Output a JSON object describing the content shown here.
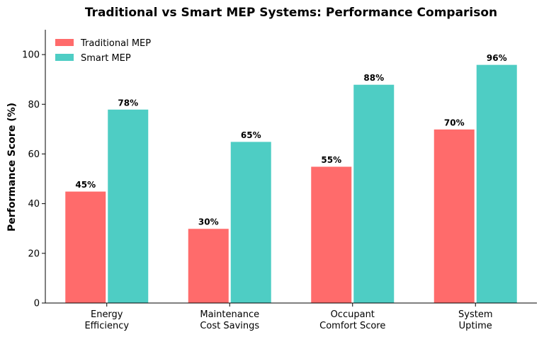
{
  "chart_data": {
    "type": "bar",
    "title": "Traditional vs Smart MEP Systems: Performance Comparison",
    "xlabel": "",
    "ylabel": "Performance Score (%)",
    "ylim": [
      0,
      110
    ],
    "yticks": [
      0,
      20,
      40,
      60,
      80,
      100
    ],
    "categories": [
      [
        "Energy",
        "Efficiency"
      ],
      [
        "Maintenance",
        "Cost Savings"
      ],
      [
        "Occupant",
        "Comfort Score"
      ],
      [
        "System",
        "Uptime"
      ]
    ],
    "series": [
      {
        "name": "Traditional MEP",
        "color": "#ff6b6b",
        "values": [
          45,
          30,
          55,
          70
        ],
        "labels": [
          "45%",
          "30%",
          "55%",
          "70%"
        ]
      },
      {
        "name": "Smart MEP",
        "color": "#4ecdc4",
        "values": [
          78,
          65,
          88,
          96
        ],
        "labels": [
          "78%",
          "65%",
          "88%",
          "96%"
        ]
      }
    ],
    "legend_position": "top-left",
    "grid": false
  }
}
